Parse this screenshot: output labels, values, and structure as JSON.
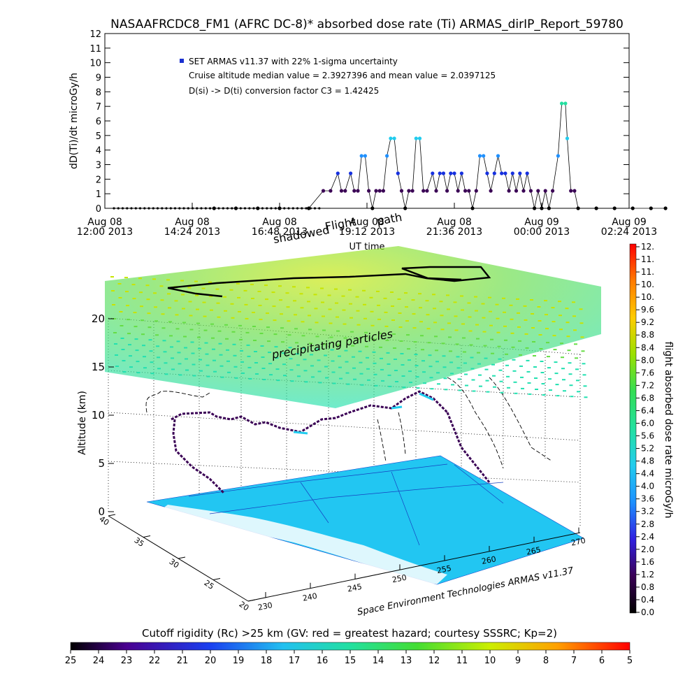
{
  "title": "NASAAFRCDC8_FM1 (AFRC DC-8)* absorbed dose rate (Ti) ARMAS_dirIP_Report_59780",
  "colors": {
    "scale": [
      "#000000",
      "#3a0055",
      "#4a0cb0",
      "#1630e0",
      "#1e90ff",
      "#22ccee",
      "#22e0a0",
      "#33dd55",
      "#88e000",
      "#d6e600",
      "#ffcc00",
      "#ff8a00",
      "#ff3a00",
      "#ff0000"
    ],
    "surface": "#22c6f2",
    "line": "#000000"
  },
  "chart_data": [
    {
      "type": "scatter",
      "name": "time-series",
      "ylabel": "dD(Ti)/dt microGy/h",
      "xlabel": "UT time",
      "ylim": [
        0,
        12
      ],
      "yticks": [
        "0",
        "1",
        "2",
        "3",
        "4",
        "5",
        "6",
        "7",
        "8",
        "9",
        "10",
        "11",
        "12"
      ],
      "xticks": [
        {
          "day": "Aug 08",
          "time": "12:00 2013"
        },
        {
          "day": "Aug 08",
          "time": "14:24 2013"
        },
        {
          "day": "Aug 08",
          "time": "16:48 2013"
        },
        {
          "day": "Aug 08",
          "time": "19:12 2013"
        },
        {
          "day": "Aug 08",
          "time": "21:36 2013"
        },
        {
          "day": "Aug 09",
          "time": "00:00 2013"
        },
        {
          "day": "Aug 09",
          "time": "02:24 2013"
        }
      ],
      "xrange_hours": [
        0,
        14.4
      ],
      "annotations": [
        "SET ARMAS v11.37 with 22% 1-sigma uncertainty",
        "Cruise altitude median value = 2.3927396 and mean value = 2.0397125",
        "D(si) -> D(ti) conversion factor C3 = 1.42425"
      ],
      "overlay_labels": [
        "shadowed",
        "Flight",
        "path"
      ],
      "series": [
        {
          "name": "SET ARMAS v11.37",
          "points": [
            [
              3.0,
              0.0
            ],
            [
              3.6,
              0.0
            ],
            [
              4.2,
              0.0
            ],
            [
              4.8,
              0.0
            ],
            [
              5.6,
              0.0
            ],
            [
              6.0,
              1.2
            ],
            [
              6.2,
              1.2
            ],
            [
              6.4,
              2.4
            ],
            [
              6.5,
              1.2
            ],
            [
              6.6,
              1.2
            ],
            [
              6.75,
              2.4
            ],
            [
              6.85,
              1.2
            ],
            [
              6.95,
              1.2
            ],
            [
              7.05,
              3.6
            ],
            [
              7.15,
              3.6
            ],
            [
              7.25,
              1.2
            ],
            [
              7.35,
              0.0
            ],
            [
              7.45,
              1.2
            ],
            [
              7.55,
              1.2
            ],
            [
              7.65,
              1.2
            ],
            [
              7.75,
              3.6
            ],
            [
              7.85,
              4.8
            ],
            [
              7.95,
              4.8
            ],
            [
              8.05,
              2.4
            ],
            [
              8.15,
              1.2
            ],
            [
              8.25,
              0.0
            ],
            [
              8.35,
              1.2
            ],
            [
              8.45,
              1.2
            ],
            [
              8.55,
              4.8
            ],
            [
              8.65,
              4.8
            ],
            [
              8.75,
              1.2
            ],
            [
              8.85,
              1.2
            ],
            [
              9.0,
              2.4
            ],
            [
              9.1,
              1.2
            ],
            [
              9.2,
              2.4
            ],
            [
              9.3,
              2.4
            ],
            [
              9.4,
              1.2
            ],
            [
              9.5,
              2.4
            ],
            [
              9.6,
              2.4
            ],
            [
              9.7,
              1.2
            ],
            [
              9.8,
              2.4
            ],
            [
              9.9,
              1.2
            ],
            [
              10.0,
              1.2
            ],
            [
              10.1,
              0.0
            ],
            [
              10.2,
              1.2
            ],
            [
              10.3,
              3.6
            ],
            [
              10.4,
              3.6
            ],
            [
              10.5,
              2.4
            ],
            [
              10.6,
              1.2
            ],
            [
              10.7,
              2.4
            ],
            [
              10.8,
              3.6
            ],
            [
              10.9,
              2.4
            ],
            [
              11.0,
              2.4
            ],
            [
              11.1,
              1.2
            ],
            [
              11.2,
              2.4
            ],
            [
              11.3,
              1.2
            ],
            [
              11.4,
              2.4
            ],
            [
              11.5,
              1.2
            ],
            [
              11.6,
              2.4
            ],
            [
              11.7,
              1.2
            ],
            [
              11.8,
              0.0
            ],
            [
              11.9,
              1.2
            ],
            [
              12.0,
              0.0
            ],
            [
              12.1,
              1.2
            ],
            [
              12.2,
              0.0
            ],
            [
              12.3,
              1.2
            ],
            [
              12.45,
              3.6
            ],
            [
              12.55,
              7.2
            ],
            [
              12.65,
              7.2
            ],
            [
              12.7,
              4.8
            ],
            [
              12.8,
              1.2
            ],
            [
              12.9,
              1.2
            ],
            [
              13.0,
              0.0
            ],
            [
              13.5,
              0.0
            ],
            [
              14.0,
              0.0
            ],
            [
              14.5,
              0.0
            ],
            [
              15.0,
              0.0
            ],
            [
              15.4,
              0.0
            ]
          ]
        }
      ]
    },
    {
      "type": "3d-scatter",
      "name": "flight-3d",
      "zlabel": "Altitude (km)",
      "zticks": [
        "0",
        "5",
        "10",
        "15",
        "20"
      ],
      "zlim": [
        0,
        20
      ],
      "lat_ticks": [
        "40",
        "35",
        "30",
        "25",
        "20"
      ],
      "lon_ticks": [
        "230",
        "240",
        "245",
        "250",
        "255",
        "260",
        "265",
        "270"
      ],
      "layer_label": "precipitating particles",
      "credit": "Space Environment Technologies ARMAS v11.37"
    },
    {
      "type": "colorbar",
      "name": "dose-rate-colorbar",
      "label": "flight absorbed dose rate microGy/h",
      "ticks": [
        "12.",
        "11.",
        "11.",
        "10.",
        "10.",
        "9.6",
        "9.2",
        "8.8",
        "8.4",
        "8.0",
        "7.6",
        "7.2",
        "6.8",
        "6.4",
        "6.0",
        "5.6",
        "5.2",
        "4.8",
        "4.4",
        "4.0",
        "3.6",
        "3.2",
        "2.8",
        "2.4",
        "2.0",
        "1.6",
        "1.2",
        "0.8",
        "0.4",
        "0.0"
      ]
    },
    {
      "type": "colorbar",
      "name": "cutoff-rigidity-colorbar",
      "label": "Cutoff rigidity (Rc) >25 km (GV: red = greatest hazard; courtesy SSSRC; Kp=2)",
      "ticks": [
        "25",
        "24",
        "23",
        "22",
        "21",
        "20",
        "19",
        "18",
        "17",
        "16",
        "15",
        "14",
        "13",
        "12",
        "11",
        "10",
        "9",
        "8",
        "7",
        "6",
        "5"
      ]
    }
  ]
}
